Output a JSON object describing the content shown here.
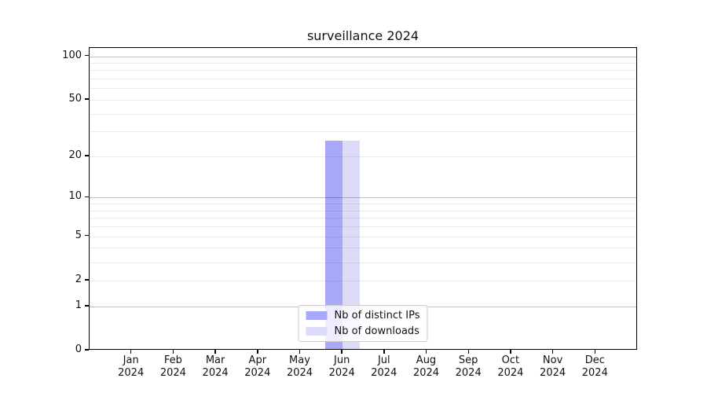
{
  "chart_data": {
    "type": "bar",
    "title": "surveillance 2024",
    "categories": [
      "Jan",
      "Feb",
      "Mar",
      "Apr",
      "May",
      "Jun",
      "Jul",
      "Aug",
      "Sep",
      "Oct",
      "Nov",
      "Dec"
    ],
    "x_tick_year": "2024",
    "series": [
      {
        "name": "Nb of distinct IPs",
        "color": "#a8a8f8",
        "values": [
          0,
          0,
          0,
          0,
          0,
          26,
          0,
          0,
          0,
          0,
          0,
          0
        ]
      },
      {
        "name": "Nb of downloads",
        "color": "#dcdcf8",
        "values": [
          0,
          0,
          0,
          0,
          0,
          26,
          0,
          0,
          0,
          0,
          0,
          0
        ]
      }
    ],
    "yscale": "log1p",
    "ylim": [
      0,
      114
    ],
    "ytick_labels": [
      0,
      1,
      2,
      5,
      10,
      20,
      50,
      100
    ],
    "grid_values_major": [
      1,
      10,
      100
    ],
    "grid_values_minor": [
      2,
      3,
      4,
      5,
      6,
      7,
      8,
      9,
      20,
      30,
      40,
      50,
      60,
      70,
      80,
      90
    ],
    "legend": {
      "position": "lower center",
      "entries": [
        "Nb of distinct IPs",
        "Nb of downloads"
      ]
    }
  }
}
